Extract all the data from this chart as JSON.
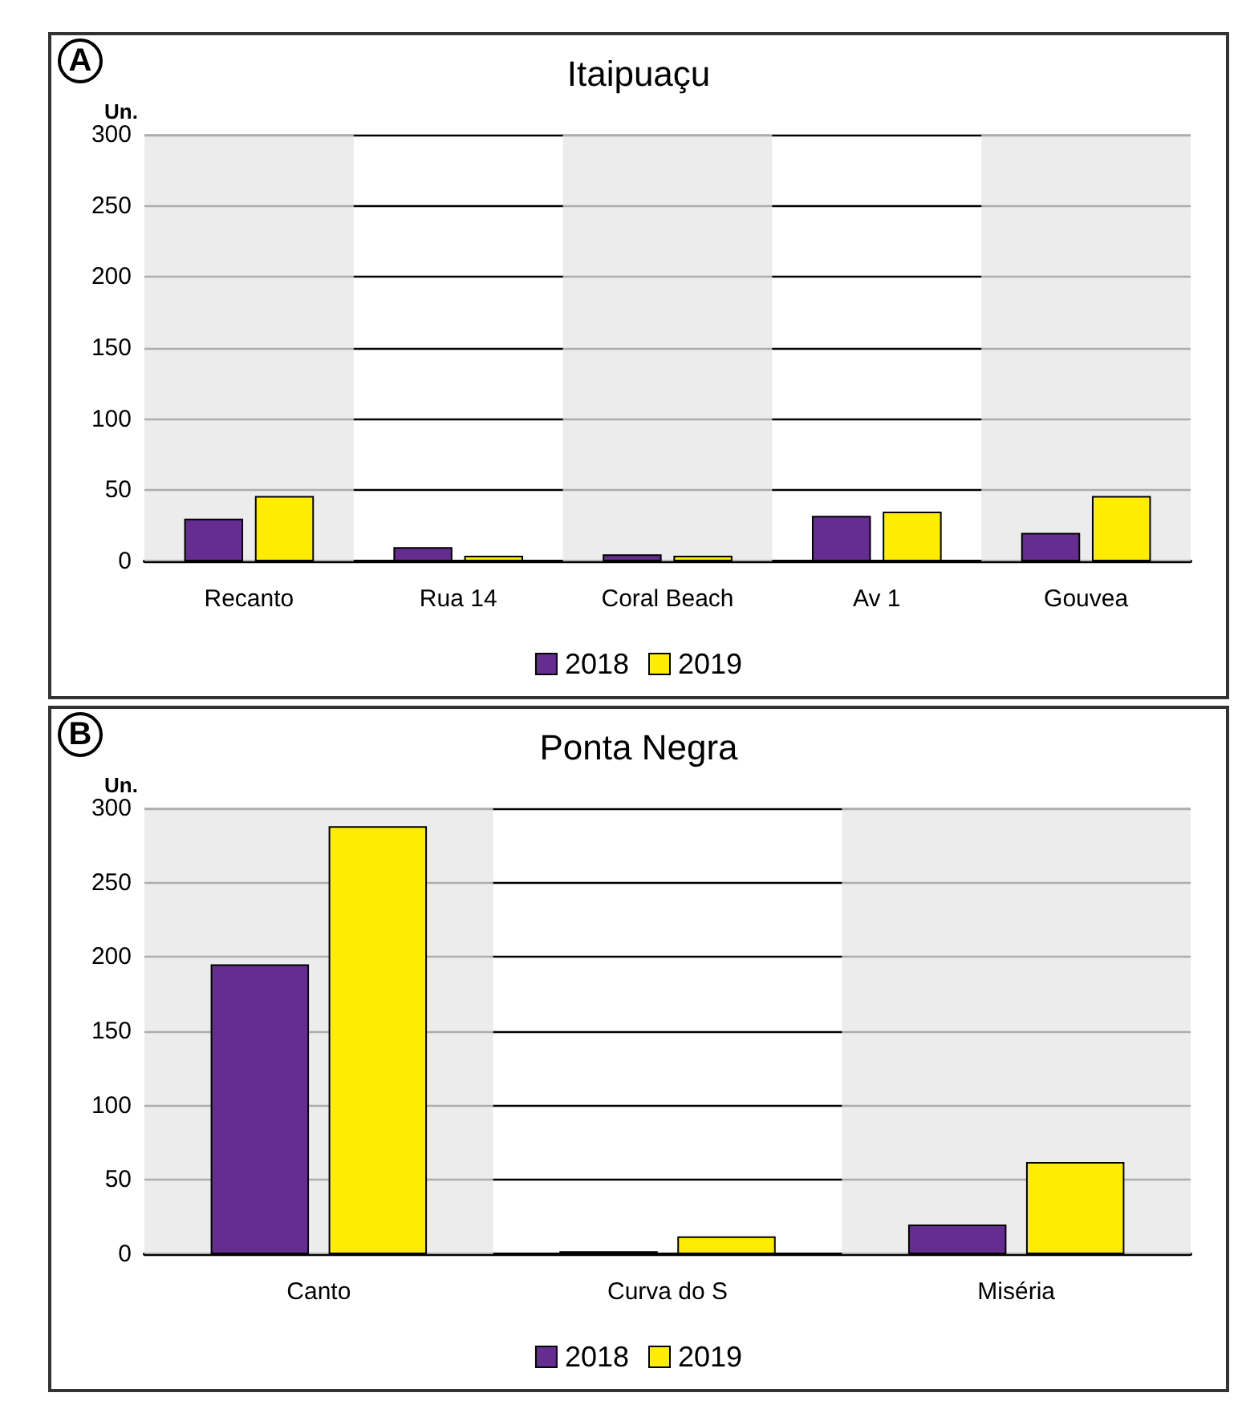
{
  "chart_data": [
    {
      "type": "bar",
      "title": "Itaipuaçu",
      "annotations": [
        "A"
      ],
      "ylabel": "Un.",
      "categories": [
        "Recanto",
        "Rua 14",
        "Coral Beach",
        "Av 1",
        "Gouvea"
      ],
      "series": [
        {
          "name": "2018",
          "color": "#662d91",
          "values": [
            30,
            10,
            5,
            32,
            20
          ]
        },
        {
          "name": "2019",
          "color": "#ffed00",
          "values": [
            46,
            4,
            4,
            35,
            46
          ]
        }
      ],
      "ylim": [
        0,
        300
      ],
      "yticks": [
        0,
        50,
        100,
        150,
        200,
        250,
        300
      ],
      "grid": "y",
      "legend": "bottom",
      "bands": [
        {
          "axis": "x",
          "from": "Recanto",
          "to": "Recanto",
          "color": "#e6e6e6"
        },
        {
          "axis": "x",
          "from": "Coral Beach",
          "to": "Coral Beach",
          "color": "#e6e6e6"
        },
        {
          "axis": "x",
          "from": "Gouvea",
          "to": "Gouvea",
          "color": "#e6e6e6"
        }
      ]
    },
    {
      "type": "bar",
      "title": "Ponta Negra",
      "annotations": [
        "B"
      ],
      "ylabel": "Un.",
      "categories": [
        "Canto",
        "Curva do S",
        "Miséria"
      ],
      "series": [
        {
          "name": "2018",
          "color": "#662d91",
          "values": [
            195,
            2,
            20
          ]
        },
        {
          "name": "2019",
          "color": "#ffed00",
          "values": [
            288,
            12,
            62
          ]
        }
      ],
      "ylim": [
        0,
        300
      ],
      "yticks": [
        0,
        50,
        100,
        150,
        200,
        250,
        300
      ],
      "grid": "y",
      "legend": "bottom",
      "bands": [
        {
          "axis": "x",
          "from": "Canto",
          "to": "Canto",
          "color": "#e6e6e6"
        },
        {
          "axis": "x",
          "from": "Miséria",
          "to": "Miséria",
          "color": "#e6e6e6"
        }
      ]
    }
  ]
}
